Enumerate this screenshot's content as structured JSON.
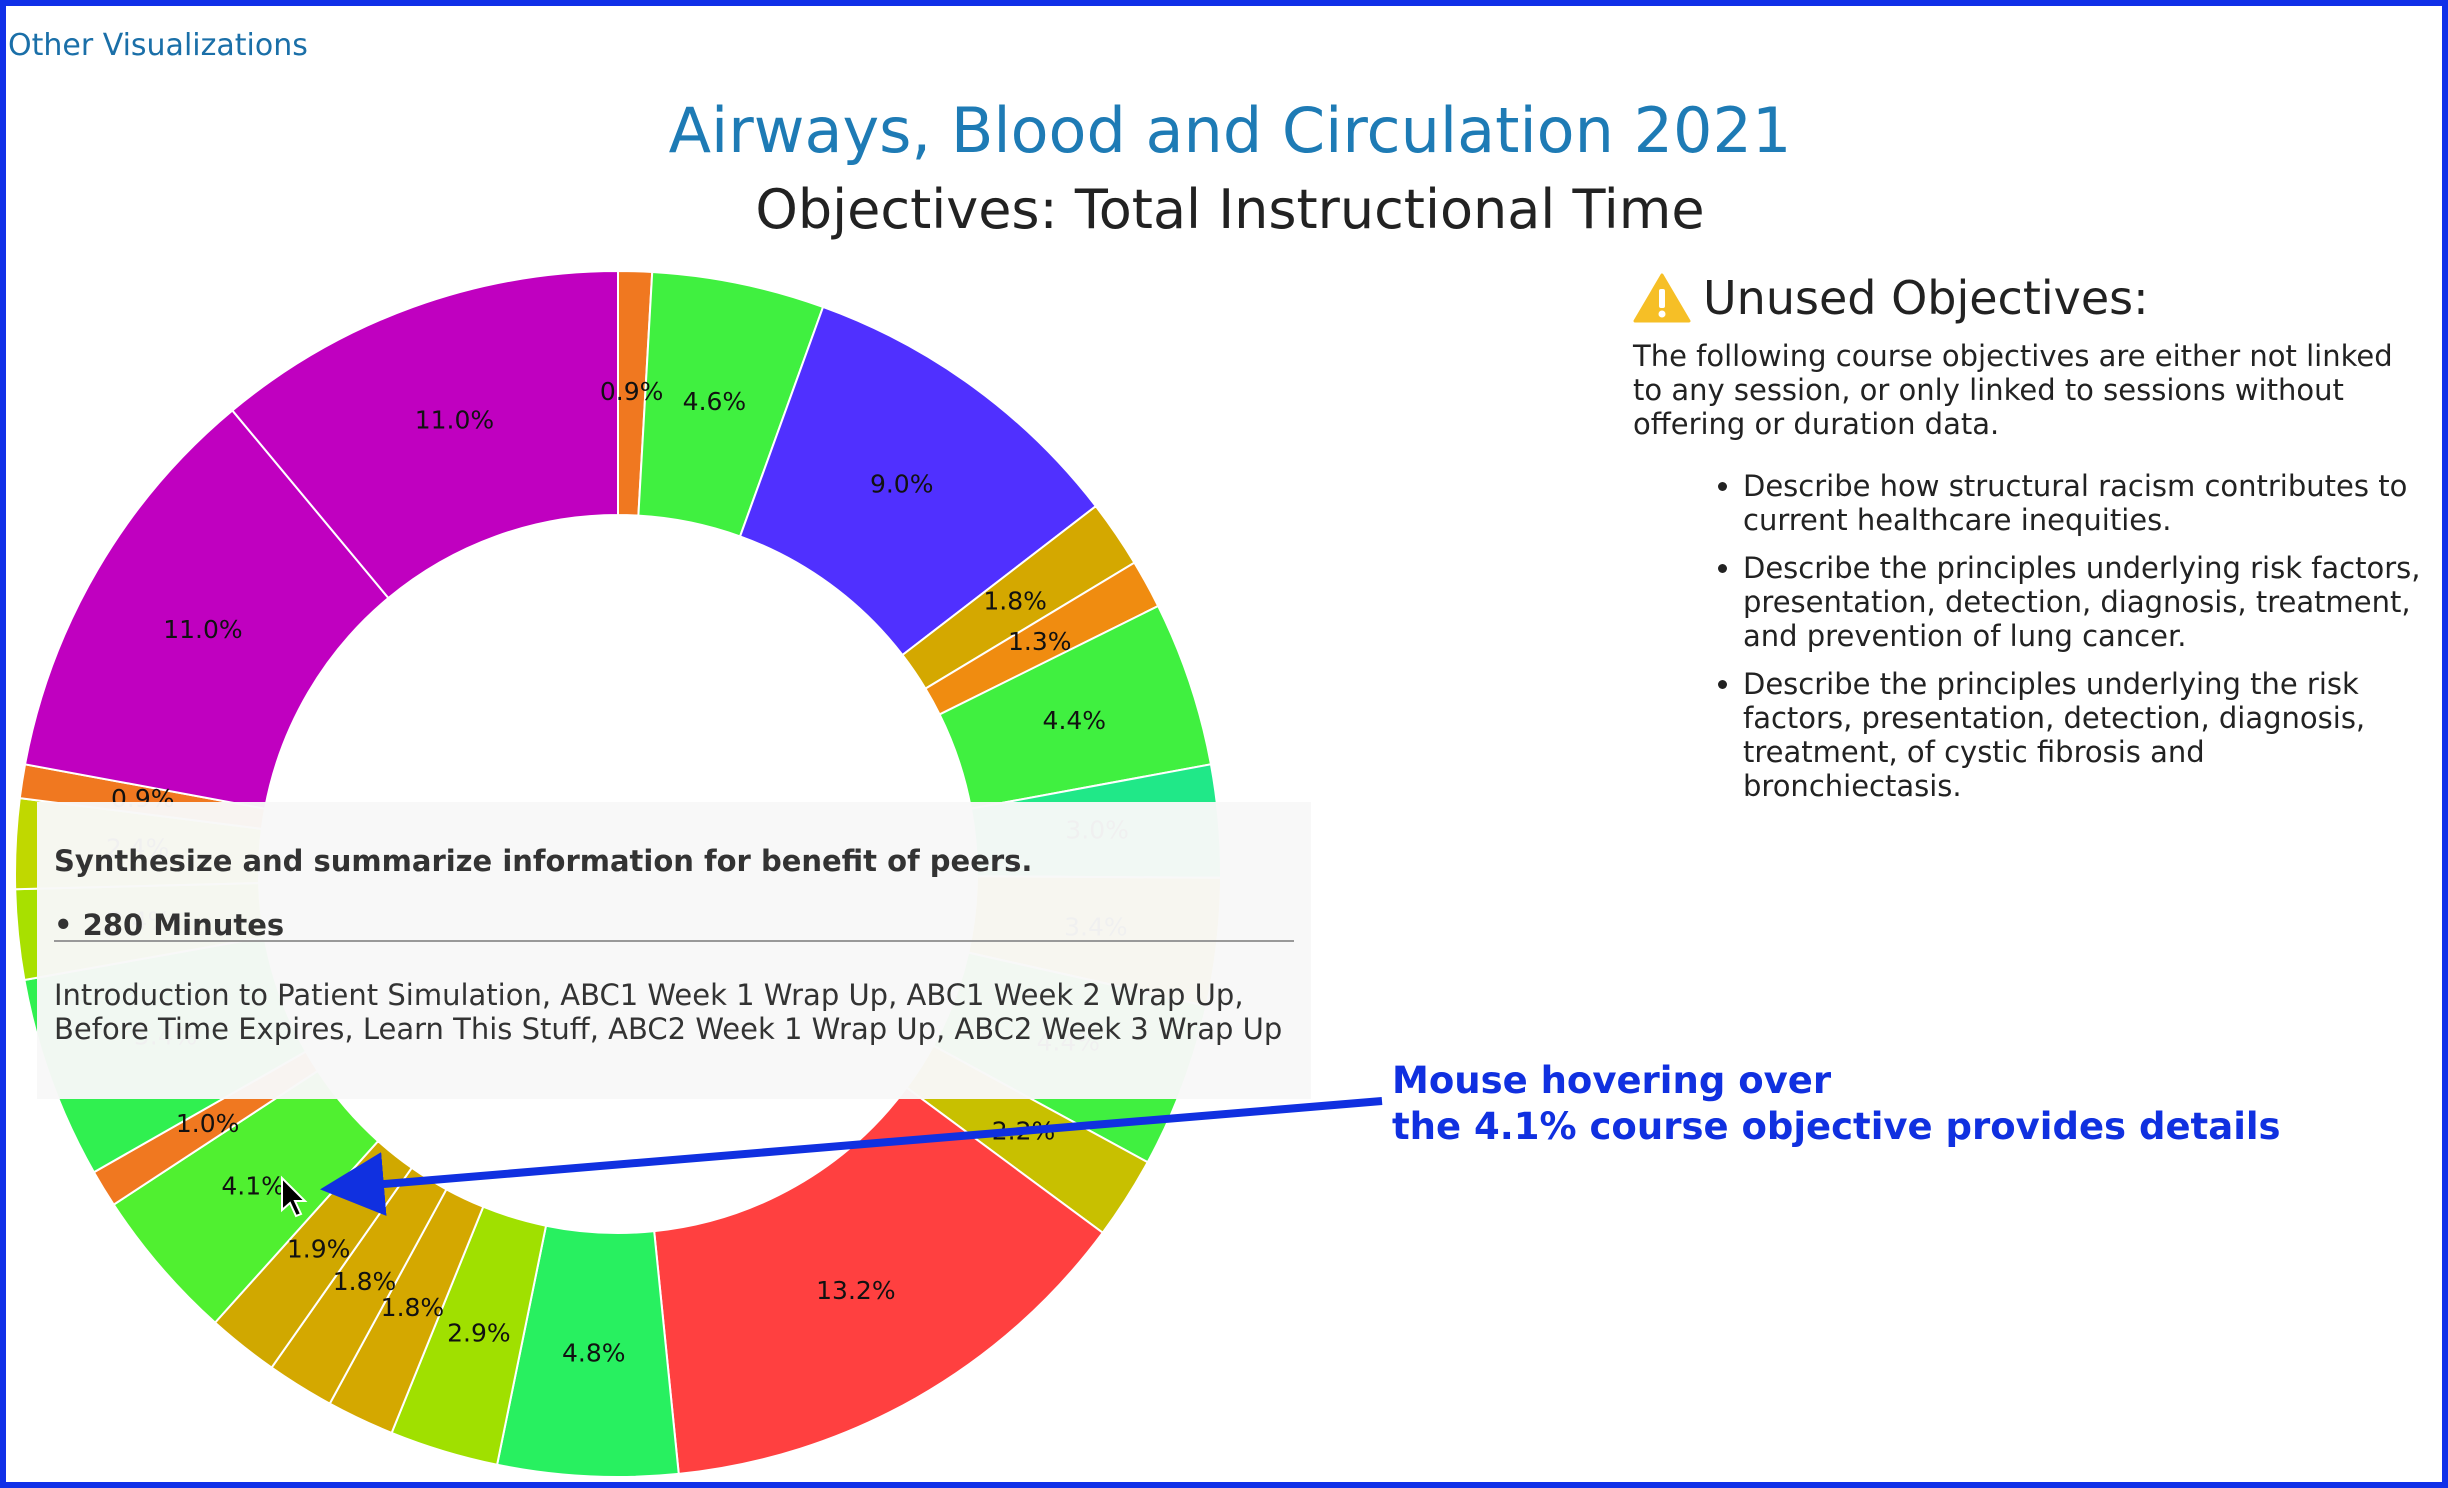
{
  "link": "Other Visualizations",
  "chart_data": {
    "type": "pie",
    "donut": true,
    "title": "Airways, Blood and Circulation 2021",
    "subtitle": "Objectives: Total Instructional Time",
    "values": [
      0.9,
      4.6,
      9.0,
      1.8,
      1.3,
      4.4,
      3.0,
      3.4,
      4.4,
      2.2,
      13.2,
      4.8,
      2.9,
      1.8,
      1.8,
      1.9,
      4.1,
      1.0,
      5.4,
      2.4,
      2.4,
      0.9,
      11.0,
      11.0
    ],
    "value_labels": [
      "0.9%",
      "4.6%",
      "9.0%",
      "1.8%",
      "1.3%",
      "4.4%",
      "3.0%",
      "3.4%",
      "4.4%",
      "2.2%",
      "13.2%",
      "4.8%",
      "2.9%",
      "1.8%",
      "1.8%",
      "1.9%",
      "4.1%",
      "1.0%",
      "5.4%",
      "2.4%",
      "2.4%",
      "0.9%",
      "11.0%",
      "11.0%"
    ],
    "colors": [
      "#f07820",
      "#40f040",
      "#5030ff",
      "#d4a800",
      "#f08c10",
      "#40f040",
      "#20e888",
      "#c8c000",
      "#40f040",
      "#c8c000",
      "#ff4040",
      "#28f060",
      "#a0e000",
      "#d4a800",
      "#d4a800",
      "#d0a800",
      "#50f030",
      "#f07820",
      "#30f050",
      "#a8e000",
      "#c0d800",
      "#f07820",
      "#c000c0",
      "#c000c0"
    ]
  },
  "unused": {
    "heading": "Unused Objectives:",
    "intro": "The following course objectives are either not linked to any session, or only linked to sessions without offering or duration data.",
    "items": [
      "Describe how structural racism contributes to current healthcare inequities.",
      "Describe the principles underlying risk factors, presentation, detection, diagnosis, treatment, and prevention of lung cancer.",
      "Describe the principles underlying the risk factors, presentation, detection, diagnosis, treatment, of cystic fibrosis and bronchiectasis."
    ]
  },
  "tooltip": {
    "title": "Synthesize and summarize information for benefit of peers.",
    "minutes": "280 Minutes",
    "sessions": "Introduction to Patient Simulation, ABC1 Week 1 Wrap Up, ABC1 Week 2 Wrap Up, Before Time Expires, Learn This Stuff, ABC2 Week 1 Wrap Up, ABC2 Week 3 Wrap Up"
  },
  "annotation": [
    "Mouse hovering over",
    "the 4.1% course objective provides details"
  ]
}
